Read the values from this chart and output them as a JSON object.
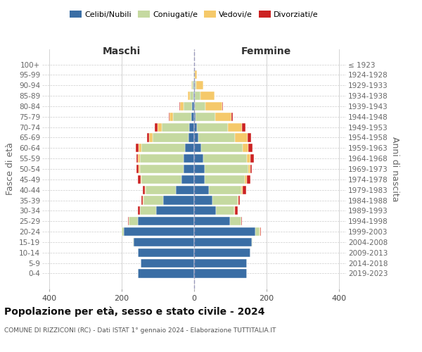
{
  "age_groups": [
    "0-4",
    "5-9",
    "10-14",
    "15-19",
    "20-24",
    "25-29",
    "30-34",
    "35-39",
    "40-44",
    "45-49",
    "50-54",
    "55-59",
    "60-64",
    "65-69",
    "70-74",
    "75-79",
    "80-84",
    "85-89",
    "90-94",
    "95-99",
    "100+"
  ],
  "birth_years": [
    "2019-2023",
    "2014-2018",
    "2009-2013",
    "2004-2008",
    "1999-2003",
    "1994-1998",
    "1989-1993",
    "1984-1988",
    "1979-1983",
    "1974-1978",
    "1969-1973",
    "1964-1968",
    "1959-1963",
    "1954-1958",
    "1949-1953",
    "1944-1948",
    "1939-1943",
    "1934-1938",
    "1929-1933",
    "1924-1928",
    "≤ 1923"
  ],
  "maschi": {
    "celibi": [
      155,
      148,
      155,
      168,
      195,
      155,
      105,
      85,
      50,
      35,
      30,
      30,
      25,
      15,
      14,
      8,
      5,
      2,
      1,
      0,
      0
    ],
    "coniugati": [
      0,
      0,
      0,
      2,
      5,
      25,
      45,
      55,
      85,
      110,
      120,
      120,
      120,
      100,
      75,
      50,
      25,
      10,
      4,
      1,
      0
    ],
    "vedovi": [
      0,
      0,
      0,
      0,
      0,
      0,
      0,
      1,
      2,
      2,
      4,
      5,
      8,
      10,
      12,
      10,
      8,
      5,
      2,
      1,
      0
    ],
    "divorziati": [
      0,
      0,
      0,
      0,
      1,
      2,
      5,
      5,
      5,
      8,
      5,
      5,
      8,
      5,
      8,
      2,
      2,
      0,
      0,
      0,
      0
    ]
  },
  "femmine": {
    "nubili": [
      145,
      145,
      155,
      160,
      170,
      100,
      60,
      50,
      40,
      30,
      30,
      25,
      20,
      12,
      8,
      4,
      2,
      2,
      1,
      0,
      0
    ],
    "coniugate": [
      0,
      0,
      0,
      2,
      10,
      30,
      50,
      70,
      90,
      110,
      120,
      120,
      115,
      100,
      85,
      55,
      30,
      15,
      5,
      2,
      0
    ],
    "vedove": [
      0,
      0,
      0,
      0,
      2,
      1,
      3,
      2,
      5,
      5,
      5,
      10,
      15,
      35,
      40,
      45,
      45,
      40,
      20,
      5,
      0
    ],
    "divorziate": [
      0,
      0,
      0,
      0,
      2,
      2,
      8,
      5,
      8,
      10,
      5,
      10,
      12,
      10,
      8,
      2,
      2,
      0,
      0,
      0,
      0
    ]
  },
  "colors": {
    "celibi_nubili": "#3a6ea5",
    "coniugati_e": "#c5d9a0",
    "vedovi_e": "#f5c96a",
    "divorziati_e": "#cc2222"
  },
  "title": "Popolazione per età, sesso e stato civile - 2024",
  "subtitle": "COMUNE DI RIZZICONI (RC) - Dati ISTAT 1° gennaio 2024 - Elaborazione TUTTITALIA.IT",
  "ylabel_left": "Fasce di età",
  "ylabel_right": "Anni di nascita",
  "xlim": [
    -420,
    420
  ],
  "xticks": [
    -400,
    -200,
    0,
    200,
    400
  ],
  "xticklabels": [
    "400",
    "200",
    "0",
    "200",
    "400"
  ],
  "background_color": "#ffffff",
  "grid_color": "#cccccc",
  "maschi_label": "Maschi",
  "femmine_label": "Femmine",
  "legend_labels": [
    "Celibi/Nubili",
    "Coniugati/e",
    "Vedovi/e",
    "Divorziati/e"
  ]
}
